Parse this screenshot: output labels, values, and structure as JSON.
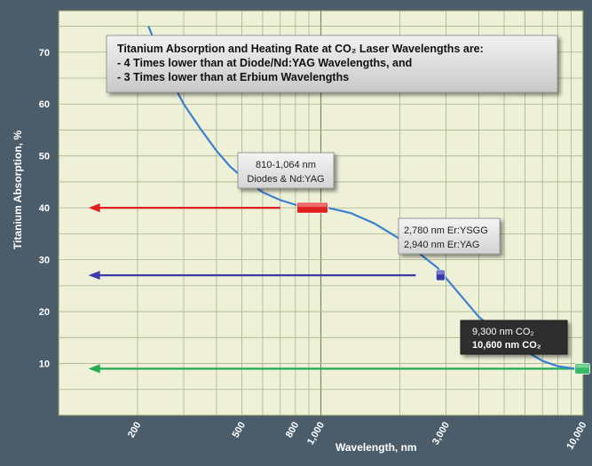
{
  "chart_data": {
    "type": "line",
    "title_lines": [
      "Titanium Absorption and Heating Rate at CO₂ Laser Wavelengths are:",
      "- 4 Times lower than at Diode/Nd:YAG Wavelengths, and",
      "- 3 Times lower than at Erbium Wavelengths"
    ],
    "xlabel": "Wavelength, nm",
    "ylabel": "Titanium Absorption, %",
    "x_scale": "log",
    "xlim": [
      100,
      10000
    ],
    "ylim": [
      0,
      78
    ],
    "x_ticks": [
      {
        "value": 200,
        "label": "200"
      },
      {
        "value": 500,
        "label": "500"
      },
      {
        "value": 800,
        "label": "800"
      },
      {
        "value": 1000,
        "label": "1,000"
      },
      {
        "value": 3000,
        "label": "3,000"
      },
      {
        "value": 10000,
        "label": "10,000"
      }
    ],
    "y_ticks": [
      10,
      20,
      30,
      40,
      50,
      60,
      70
    ],
    "grid": true,
    "series": [
      {
        "x": [
          220,
          260,
          300,
          350,
          400,
          450,
          500,
          600,
          700,
          810,
          900,
          1064,
          1300,
          1600,
          2000,
          2400,
          2780,
          2940,
          3300,
          4000,
          5000,
          6000,
          7000,
          8000,
          9300,
          10600
        ],
        "y": [
          75,
          66,
          60,
          55,
          51,
          48,
          46,
          43,
          41.5,
          40.5,
          40.3,
          40,
          39,
          37,
          34,
          31,
          28.5,
          27,
          24,
          19,
          15,
          12.5,
          10.5,
          9.5,
          9,
          8.5
        ]
      }
    ],
    "markers": [
      {
        "x_from": 810,
        "x_to": 1064,
        "y": 40,
        "color": "#e02020"
      },
      {
        "x_from": 2780,
        "x_to": 2940,
        "y": 27,
        "color": "#3a3aa8"
      },
      {
        "x_from": 9300,
        "x_to": 10600,
        "y": 9,
        "color": "#33bb66"
      }
    ],
    "arrows": [
      {
        "y": 40,
        "x_start": 700,
        "x_end": 130,
        "color": "#e02020"
      },
      {
        "y": 27,
        "x_start": 2300,
        "x_end": 130,
        "color": "#3a3aa8"
      },
      {
        "y": 9,
        "x_start": 9300,
        "x_end": 130,
        "color": "#22aa55"
      }
    ],
    "annotations": [
      {
        "lines": [
          "810-1,064 nm",
          "Diodes & Nd:YAG"
        ],
        "style": "light"
      },
      {
        "lines": [
          "2,780 nm Er:YSGG",
          "2,940 nm Er:YAG"
        ],
        "style": "light"
      },
      {
        "lines": [
          "9,300 nm CO₂",
          "10,600 nm CO₂"
        ],
        "style": "dark"
      }
    ]
  }
}
